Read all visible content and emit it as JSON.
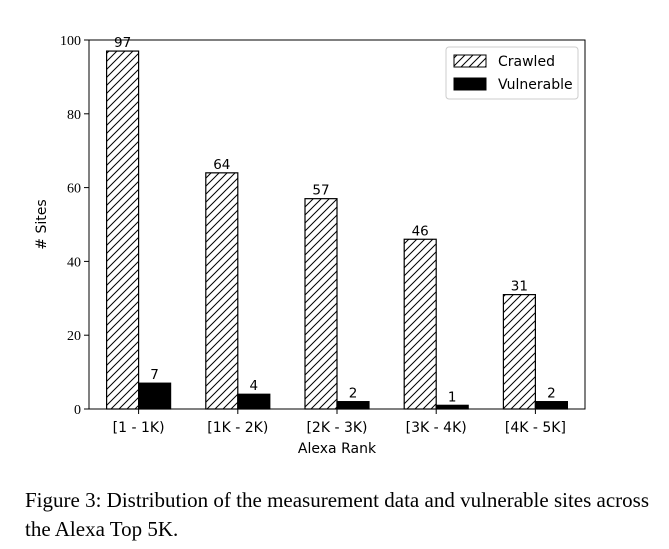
{
  "chart_data": {
    "type": "bar",
    "xlabel": "Alexa Rank",
    "ylabel": "# Sites",
    "categories": [
      "[1 - 1K)",
      "[1K - 2K)",
      "[2K - 3K)",
      "[3K - 4K)",
      "[4K - 5K]"
    ],
    "series": [
      {
        "name": "Crawled",
        "values": [
          97,
          64,
          57,
          46,
          31
        ],
        "pattern": "hatch",
        "color": "#000000"
      },
      {
        "name": "Vulnerable",
        "values": [
          7,
          4,
          2,
          1,
          2
        ],
        "pattern": "solid",
        "color": "#000000"
      }
    ],
    "ylim": [
      0,
      100
    ],
    "yticks": [
      0,
      20,
      40,
      60,
      80,
      100
    ],
    "legend_position": "top-right",
    "grid": false
  },
  "caption": "Figure 3: Distribution of the measurement data and vulnerable sites across the Alexa Top 5K."
}
